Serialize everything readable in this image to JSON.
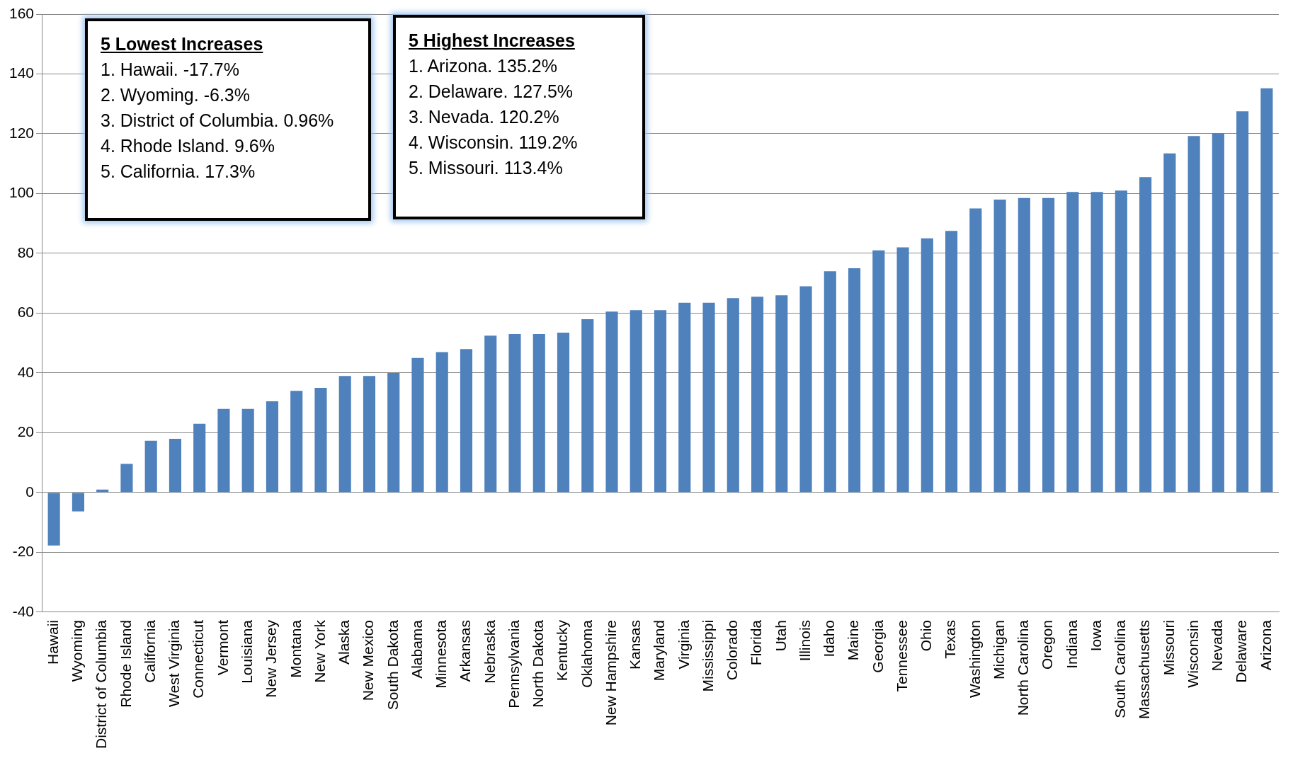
{
  "chart_data": {
    "type": "bar",
    "categories": [
      "Hawaii",
      "Wyoming",
      "District of Columbia",
      "Rhode Island",
      "California",
      "West Virginia",
      "Connecticut",
      "Vermont",
      "Louisiana",
      "New Jersey",
      "Montana",
      "New York",
      "Alaska",
      "New Mexico",
      "South Dakota",
      "Alabama",
      "Minnesota",
      "Arkansas",
      "Nebraska",
      "Pennsylvania",
      "North Dakota",
      "Kentucky",
      "Oklahoma",
      "New Hampshire",
      "Kansas",
      "Maryland",
      "Virginia",
      "Mississippi",
      "Colorado",
      "Florida",
      "Utah",
      "Illinois",
      "Idaho",
      "Maine",
      "Georgia",
      "Tennessee",
      "Ohio",
      "Texas",
      "Washington",
      "Michigan",
      "North Carolina",
      "Oregon",
      "Indiana",
      "Iowa",
      "South Carolina",
      "Massachusetts",
      "Missouri",
      "Wisconsin",
      "Nevada",
      "Delaware",
      "Arizona"
    ],
    "values": [
      -17.7,
      -6.3,
      1,
      9.6,
      17.3,
      18,
      23,
      28,
      28,
      30.5,
      34,
      35,
      39,
      39,
      40,
      45,
      47,
      48,
      52.5,
      53,
      53,
      53.5,
      58,
      60.5,
      61,
      61,
      63.5,
      63.5,
      65,
      65.5,
      66,
      69,
      74,
      75,
      81,
      82,
      85,
      87.5,
      95,
      98,
      98.5,
      98.5,
      100.5,
      100.5,
      101,
      105.5,
      113.4,
      119.2,
      120.2,
      127.5,
      135.2
    ],
    "color": "#4f81bd",
    "ylim": [
      -40,
      160
    ],
    "yticks": [
      -40,
      -20,
      0,
      20,
      40,
      60,
      80,
      100,
      120,
      140,
      160
    ],
    "grid": "y",
    "annotations": [
      "5 Lowest Increases\n1. Hawaii. -17.7%\n2. Wyoming. -6.3%\n3. District of Columbia. 0.96%\n4. Rhode Island. 9.6%\n5. California. 17.3%",
      "5 Highest Increases\n1. Arizona. 135.2%\n2. Delaware. 127.5%\n3. Nevada. 120.2%\n4. Wisconsin. 119.2%\n5. Missouri. 113.4%"
    ]
  }
}
